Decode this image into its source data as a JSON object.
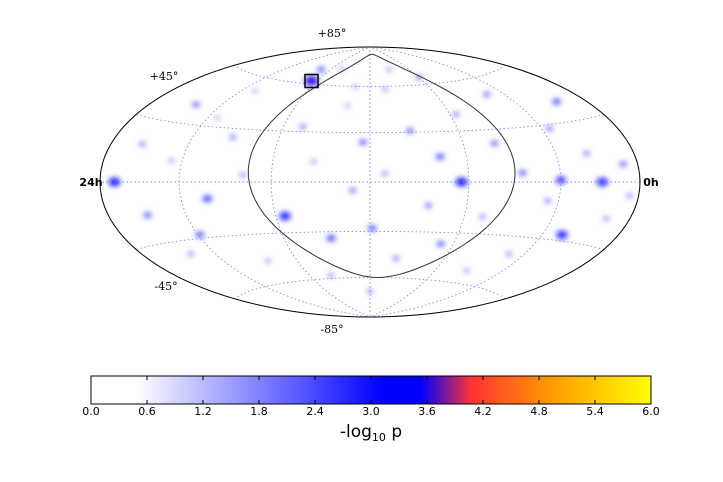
{
  "chart_data": {
    "type": "heatmap",
    "projection": "hammer-aitoff",
    "title": "",
    "meridian_labels": {
      "left": "24h",
      "right": "0h"
    },
    "parallel_labels": {
      "top": "+85°",
      "upper": "+45°",
      "lower": "-45°",
      "bottom": "-85°"
    },
    "grid": true,
    "colorbar": {
      "label_main": "-log",
      "label_sub": "10",
      "label_end": " p",
      "ticks": [
        "0.0",
        "0.6",
        "1.2",
        "1.8",
        "2.4",
        "3.0",
        "3.6",
        "4.2",
        "4.8",
        "5.4",
        "6.0"
      ],
      "range": [
        0.0,
        6.0
      ],
      "colors": [
        "#ffffff",
        "#ffffff",
        "#4848ff",
        "#0000ff",
        "#0000ff",
        "#ff3333",
        "#ff9900",
        "#ffff00"
      ],
      "stops": [
        0.0,
        0.08,
        0.4,
        0.52,
        0.59,
        0.68,
        0.82,
        1.0
      ]
    },
    "highlight_box": {
      "ra_hours": 16.4,
      "dec_deg": 62,
      "label": ""
    },
    "spots": [
      {
        "ra": 23.2,
        "dec": 0,
        "v": 3.1
      },
      {
        "ra": 22.3,
        "dec": 18,
        "v": 2.0
      },
      {
        "ra": 21.9,
        "dec": -16,
        "v": 2.3
      },
      {
        "ra": 21.4,
        "dec": 40,
        "v": 2.2
      },
      {
        "ra": 21.3,
        "dec": -37,
        "v": 1.9
      },
      {
        "ra": 20.5,
        "dec": 11,
        "v": 1.8
      },
      {
        "ra": 19.9,
        "dec": -28,
        "v": 2.4
      },
      {
        "ra": 19.2,
        "dec": 52,
        "v": 1.7
      },
      {
        "ra": 18.8,
        "dec": -9,
        "v": 2.6
      },
      {
        "ra": 18.1,
        "dec": 25,
        "v": 2.0
      },
      {
        "ra": 17.6,
        "dec": -46,
        "v": 1.8
      },
      {
        "ra": 17.2,
        "dec": 4,
        "v": 1.9
      },
      {
        "ra": 16.4,
        "dec": 62,
        "v": 3.6
      },
      {
        "ra": 16.9,
        "dec": 70,
        "v": 2.3
      },
      {
        "ra": 15.6,
        "dec": -20,
        "v": 3.0
      },
      {
        "ra": 15.1,
        "dec": 33,
        "v": 2.0
      },
      {
        "ra": 14.6,
        "dec": -58,
        "v": 1.9
      },
      {
        "ra": 14.3,
        "dec": 12,
        "v": 1.8
      },
      {
        "ra": 13.8,
        "dec": -34,
        "v": 2.5
      },
      {
        "ra": 13.2,
        "dec": 47,
        "v": 1.7
      },
      {
        "ra": 12.7,
        "dec": -5,
        "v": 2.1
      },
      {
        "ra": 12.3,
        "dec": 24,
        "v": 2.3
      },
      {
        "ra": 11.9,
        "dec": -28,
        "v": 2.4
      },
      {
        "ra": 11.4,
        "dec": 5,
        "v": 1.9
      },
      {
        "ra": 11.0,
        "dec": 58,
        "v": 1.8
      },
      {
        "ra": 10.6,
        "dec": -47,
        "v": 2.0
      },
      {
        "ra": 10.2,
        "dec": 31,
        "v": 2.2
      },
      {
        "ra": 9.6,
        "dec": -14,
        "v": 2.1
      },
      {
        "ra": 9.1,
        "dec": 15,
        "v": 2.4
      },
      {
        "ra": 8.6,
        "dec": -37,
        "v": 2.3
      },
      {
        "ra": 8.3,
        "dec": 0,
        "v": 3.2
      },
      {
        "ra": 7.7,
        "dec": 40,
        "v": 2.0
      },
      {
        "ra": 7.2,
        "dec": -20,
        "v": 1.9
      },
      {
        "ra": 6.6,
        "dec": 22,
        "v": 2.2
      },
      {
        "ra": 6.1,
        "dec": -52,
        "v": 1.8
      },
      {
        "ra": 5.7,
        "dec": 5,
        "v": 2.3
      },
      {
        "ra": 5.0,
        "dec": 50,
        "v": 2.1
      },
      {
        "ra": 4.5,
        "dec": -10,
        "v": 2.0
      },
      {
        "ra": 4.0,
        "dec": 1,
        "v": 2.8
      },
      {
        "ra": 3.6,
        "dec": 28,
        "v": 2.1
      },
      {
        "ra": 3.0,
        "dec": -27,
        "v": 3.0
      },
      {
        "ra": 2.5,
        "dec": 14,
        "v": 2.0
      },
      {
        "ra": 2.0,
        "dec": 0,
        "v": 3.0
      },
      {
        "ra": 1.7,
        "dec": 40,
        "v": 2.4
      },
      {
        "ra": 1.3,
        "dec": -17,
        "v": 1.9
      },
      {
        "ra": 0.8,
        "dec": 8,
        "v": 2.2
      },
      {
        "ra": 0.5,
        "dec": -6,
        "v": 1.9
      },
      {
        "ra": 12.0,
        "dec": -70,
        "v": 1.9
      },
      {
        "ra": 15.0,
        "dec": 72,
        "v": 1.7
      },
      {
        "ra": 8.0,
        "dec": 65,
        "v": 2.0
      },
      {
        "ra": 19.5,
        "dec": 35,
        "v": 1.7
      },
      {
        "ra": 4.8,
        "dec": -40,
        "v": 1.9
      },
      {
        "ra": 10.0,
        "dec": 72,
        "v": 1.8
      },
      {
        "ra": 13.0,
        "dec": 60,
        "v": 1.7
      }
    ]
  }
}
